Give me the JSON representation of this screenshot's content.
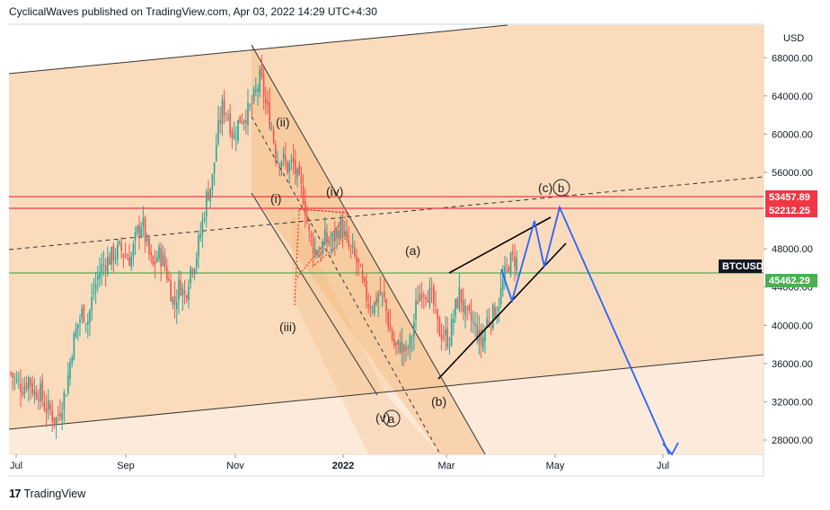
{
  "header": {
    "publisher_line": "CyclicalWaves published on TradingView.com, Apr 03, 2022 14:29 UTC+4:30"
  },
  "footer": {
    "brand": "TradingView"
  },
  "chart_data": {
    "type": "candlestick",
    "symbol_badge": "BTCUSD",
    "currency_label": "USD",
    "y_ticks": [
      "68000.00",
      "64000.00",
      "60000.00",
      "56000.00",
      "48000.00",
      "44000.00",
      "40000.00",
      "36000.00",
      "32000.00",
      "28000.00"
    ],
    "x_ticks": [
      "Jul",
      "Sep",
      "Nov",
      "2022",
      "Mar",
      "May",
      "Jul"
    ],
    "ylim": [
      26500,
      71500
    ],
    "price_labels": [
      {
        "value": 53457.89,
        "text": "53457.89",
        "color": "#f23645"
      },
      {
        "value": 52212.25,
        "text": "52212.25",
        "color": "#f23645"
      },
      {
        "value": 45462.29,
        "text": "45462.29",
        "color": "#4caf50"
      }
    ],
    "wave_labels": [
      "(ii)",
      "(i)",
      "(iv)",
      "(iii)",
      "(v)",
      "a",
      "(a)",
      "(b)",
      "(c)",
      "b"
    ],
    "candles_close_path": [
      [
        0,
        35000
      ],
      [
        7,
        34000
      ],
      [
        14,
        33500
      ],
      [
        20,
        34500
      ],
      [
        26,
        33000
      ],
      [
        32,
        33200
      ],
      [
        38,
        31500
      ],
      [
        44,
        31000
      ],
      [
        50,
        30000
      ],
      [
        56,
        31500
      ],
      [
        62,
        33500
      ],
      [
        68,
        37500
      ],
      [
        74,
        40000
      ],
      [
        80,
        41500
      ],
      [
        86,
        40500
      ],
      [
        92,
        43500
      ],
      [
        98,
        45500
      ],
      [
        104,
        46500
      ],
      [
        110,
        47000
      ],
      [
        116,
        47500
      ],
      [
        122,
        48000
      ],
      [
        128,
        47200
      ],
      [
        134,
        47000
      ],
      [
        140,
        49500
      ],
      [
        146,
        51000
      ],
      [
        152,
        48000
      ],
      [
        158,
        46000
      ],
      [
        164,
        47500
      ],
      [
        170,
        46800
      ],
      [
        176,
        44500
      ],
      [
        182,
        42000
      ],
      [
        188,
        44500
      ],
      [
        194,
        43000
      ],
      [
        200,
        46000
      ],
      [
        206,
        47000
      ],
      [
        212,
        50000
      ],
      [
        218,
        53500
      ],
      [
        224,
        55000
      ],
      [
        230,
        60000
      ],
      [
        236,
        63000
      ],
      [
        242,
        62000
      ],
      [
        248,
        59500
      ],
      [
        254,
        61500
      ],
      [
        260,
        62000
      ],
      [
        266,
        62500
      ],
      [
        272,
        64000
      ],
      [
        278,
        66000
      ],
      [
        284,
        63000
      ],
      [
        290,
        61000
      ],
      [
        296,
        57500
      ],
      [
        302,
        57500
      ],
      [
        308,
        56500
      ],
      [
        314,
        57000
      ],
      [
        320,
        55000
      ],
      [
        326,
        53500
      ],
      [
        332,
        49500
      ],
      [
        338,
        48000
      ],
      [
        344,
        47500
      ],
      [
        350,
        49000
      ],
      [
        356,
        48500
      ],
      [
        362,
        49500
      ],
      [
        368,
        50500
      ],
      [
        374,
        48500
      ],
      [
        380,
        47500
      ],
      [
        386,
        46500
      ],
      [
        392,
        44000
      ],
      [
        398,
        42500
      ],
      [
        404,
        42000
      ],
      [
        410,
        43500
      ],
      [
        416,
        42500
      ],
      [
        422,
        39500
      ],
      [
        428,
        37500
      ],
      [
        434,
        38000
      ],
      [
        440,
        37000
      ],
      [
        446,
        38500
      ],
      [
        452,
        42500
      ],
      [
        458,
        44000
      ],
      [
        464,
        43500
      ],
      [
        470,
        42500
      ],
      [
        476,
        39500
      ],
      [
        482,
        39000
      ],
      [
        488,
        38500
      ],
      [
        494,
        41500
      ],
      [
        500,
        43500
      ],
      [
        506,
        41000
      ],
      [
        512,
        40500
      ],
      [
        518,
        39500
      ],
      [
        524,
        38000
      ],
      [
        530,
        40500
      ],
      [
        536,
        41000
      ],
      [
        542,
        42000
      ],
      [
        548,
        44500
      ],
      [
        554,
        46500
      ],
      [
        560,
        47000
      ],
      [
        565,
        46500
      ]
    ]
  }
}
